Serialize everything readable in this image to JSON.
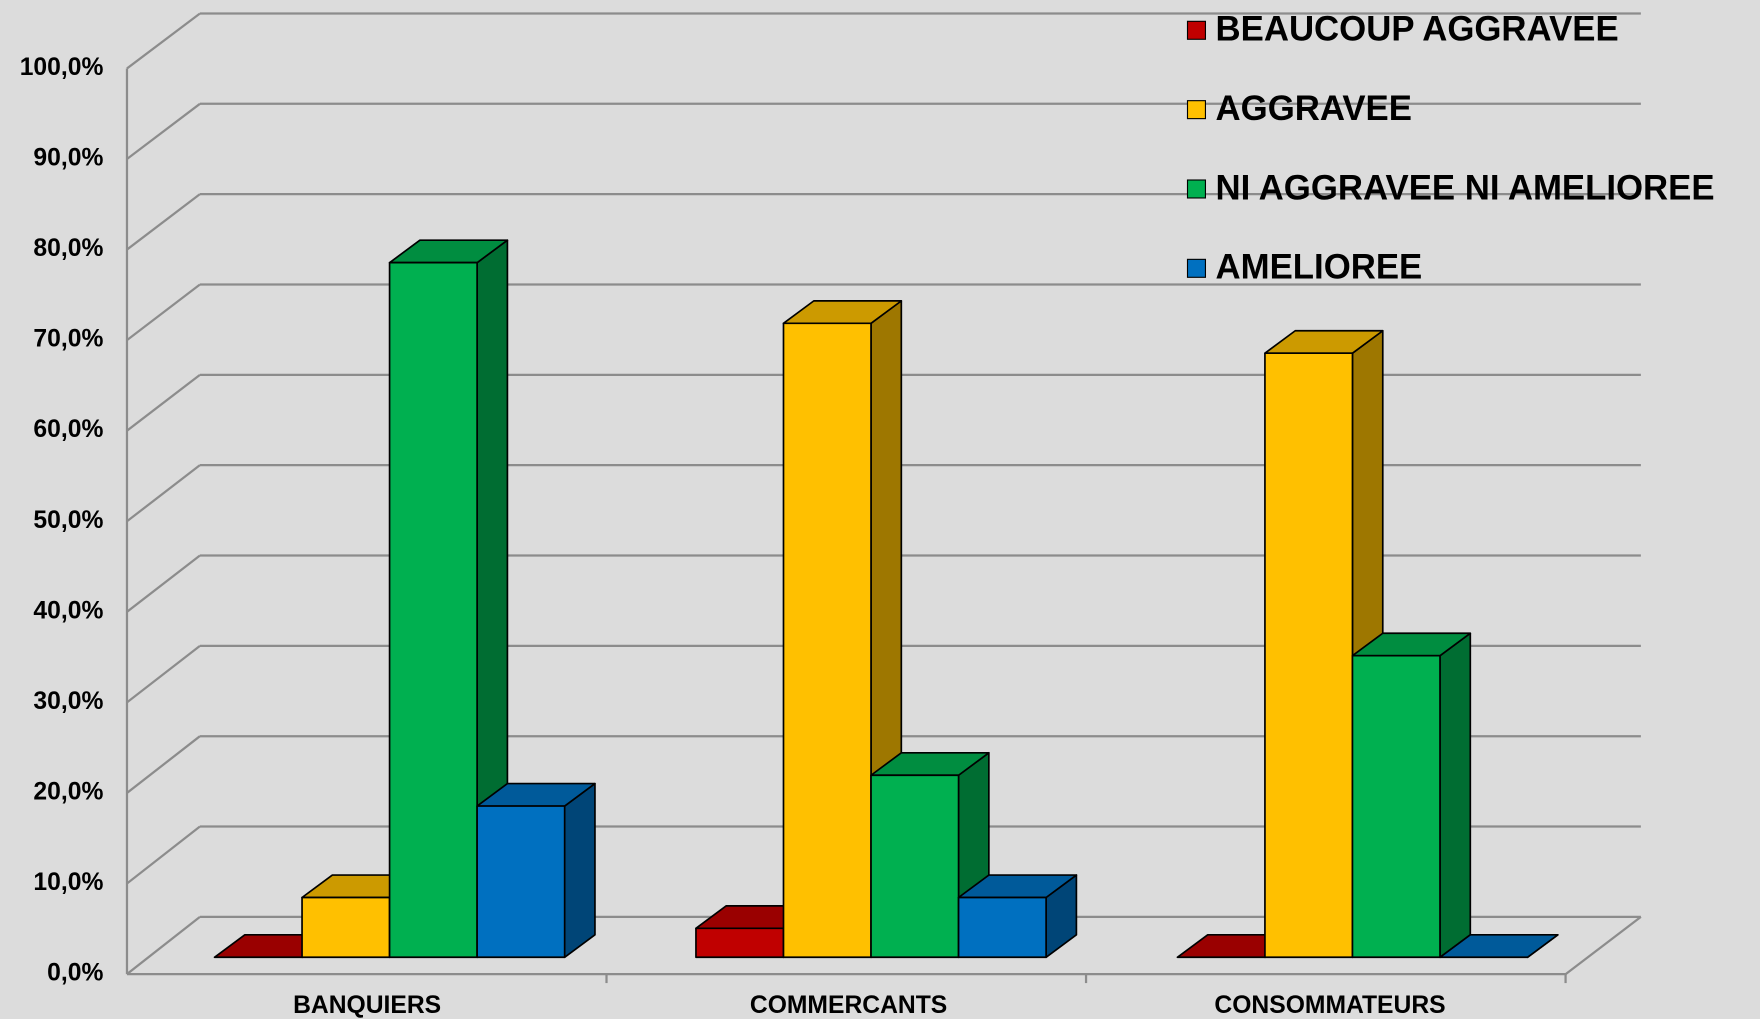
{
  "chart_data": {
    "type": "bar3d",
    "categories": [
      "BANQUIERS",
      "COMMERCANTS",
      "CONSOMMATEURS"
    ],
    "series": [
      {
        "name": "BEAUCOUP AGGRAVEE",
        "color": "#c00000",
        "values": [
          0,
          3.2,
          0
        ]
      },
      {
        "name": "AGGRAVEE",
        "color": "#ffc000",
        "values": [
          6.6,
          70.0,
          66.7
        ]
      },
      {
        "name": "NI AGGRAVEE NI AMELIOREE",
        "color": "#00b050",
        "values": [
          76.7,
          20.1,
          33.3
        ]
      },
      {
        "name": "AMELIOREE",
        "color": "#0070c0",
        "values": [
          16.7,
          6.6,
          0
        ]
      }
    ],
    "ylim": [
      0,
      100
    ],
    "yticks": [
      {
        "value": 0,
        "label": "0,0%"
      },
      {
        "value": 10,
        "label": "10,0%"
      },
      {
        "value": 20,
        "label": "20,0%"
      },
      {
        "value": 30,
        "label": "30,0%"
      },
      {
        "value": 40,
        "label": "40,0%"
      },
      {
        "value": 50,
        "label": "50,0%"
      },
      {
        "value": 60,
        "label": "60,0%"
      },
      {
        "value": 70,
        "label": "70,0%"
      },
      {
        "value": 80,
        "label": "80,0%"
      },
      {
        "value": 90,
        "label": "90,0%"
      },
      {
        "value": 100,
        "label": "100,0%"
      }
    ],
    "grid": true,
    "legend": "top-right"
  }
}
